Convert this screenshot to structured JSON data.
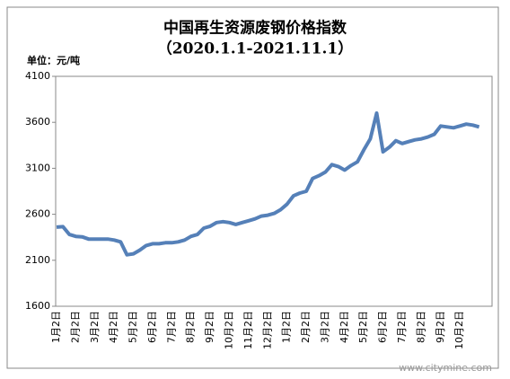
{
  "chart_data": {
    "type": "line",
    "title": "中国再生资源废钢价格指数",
    "subtitle": "（2020.1.1-2021.11.1）",
    "y_label": "单位：元/吨",
    "watermark": "www.citymine.com",
    "categories": [
      "1月2日",
      null,
      null,
      "2月2日",
      null,
      null,
      "3月2日",
      null,
      null,
      "4月2日",
      null,
      null,
      "5月2日",
      null,
      null,
      "6月2日",
      null,
      null,
      "7月2日",
      null,
      null,
      "8月2日",
      null,
      null,
      "9月2日",
      null,
      null,
      "10月2日",
      null,
      null,
      "11月2日",
      null,
      null,
      "12月2日",
      null,
      null,
      "1月2日",
      null,
      null,
      "2月2日",
      null,
      null,
      "3月2日",
      null,
      null,
      "4月2日",
      null,
      null,
      "5月2日",
      null,
      null,
      "6月2日",
      null,
      null,
      "7月2日",
      null,
      null,
      "8月2日",
      null,
      null,
      "9月2日",
      null,
      null,
      "10月2日",
      null,
      null,
      null
    ],
    "series": [
      {
        "name": "中国再生资源废钢价格指数",
        "color": "#5580b8",
        "values": [
          2460,
          2465,
          2380,
          2360,
          2355,
          2330,
          2330,
          2330,
          2330,
          2320,
          2300,
          2160,
          2170,
          2210,
          2260,
          2280,
          2280,
          2290,
          2290,
          2300,
          2320,
          2360,
          2380,
          2450,
          2470,
          2510,
          2520,
          2510,
          2490,
          2510,
          2530,
          2550,
          2580,
          2590,
          2610,
          2650,
          2710,
          2800,
          2830,
          2850,
          2990,
          3020,
          3060,
          3140,
          3120,
          3080,
          3130,
          3170,
          3300,
          3420,
          3700,
          3280,
          3330,
          3400,
          3370,
          3390,
          3410,
          3420,
          3440,
          3470,
          3560,
          3550,
          3540,
          3560,
          3580,
          3570,
          3550
        ]
      }
    ],
    "ylim": [
      1600,
      4100
    ],
    "yticks": [
      1600,
      2100,
      2600,
      3100,
      3600,
      4100
    ],
    "grid": false
  }
}
